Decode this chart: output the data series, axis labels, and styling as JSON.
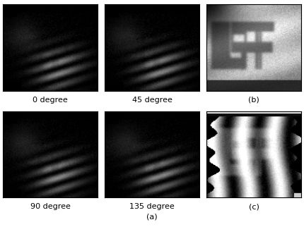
{
  "figure_width": 4.3,
  "figure_height": 3.22,
  "dpi": 100,
  "background_color": "#ffffff",
  "labels": {
    "top_row": [
      "0 degree",
      "45 degree",
      "(b)"
    ],
    "bottom_row": [
      "90 degree",
      "135 degree",
      "(c)"
    ],
    "bottom_center": "(a)"
  },
  "label_fontsize": 8,
  "panel_border_color": "#000000"
}
